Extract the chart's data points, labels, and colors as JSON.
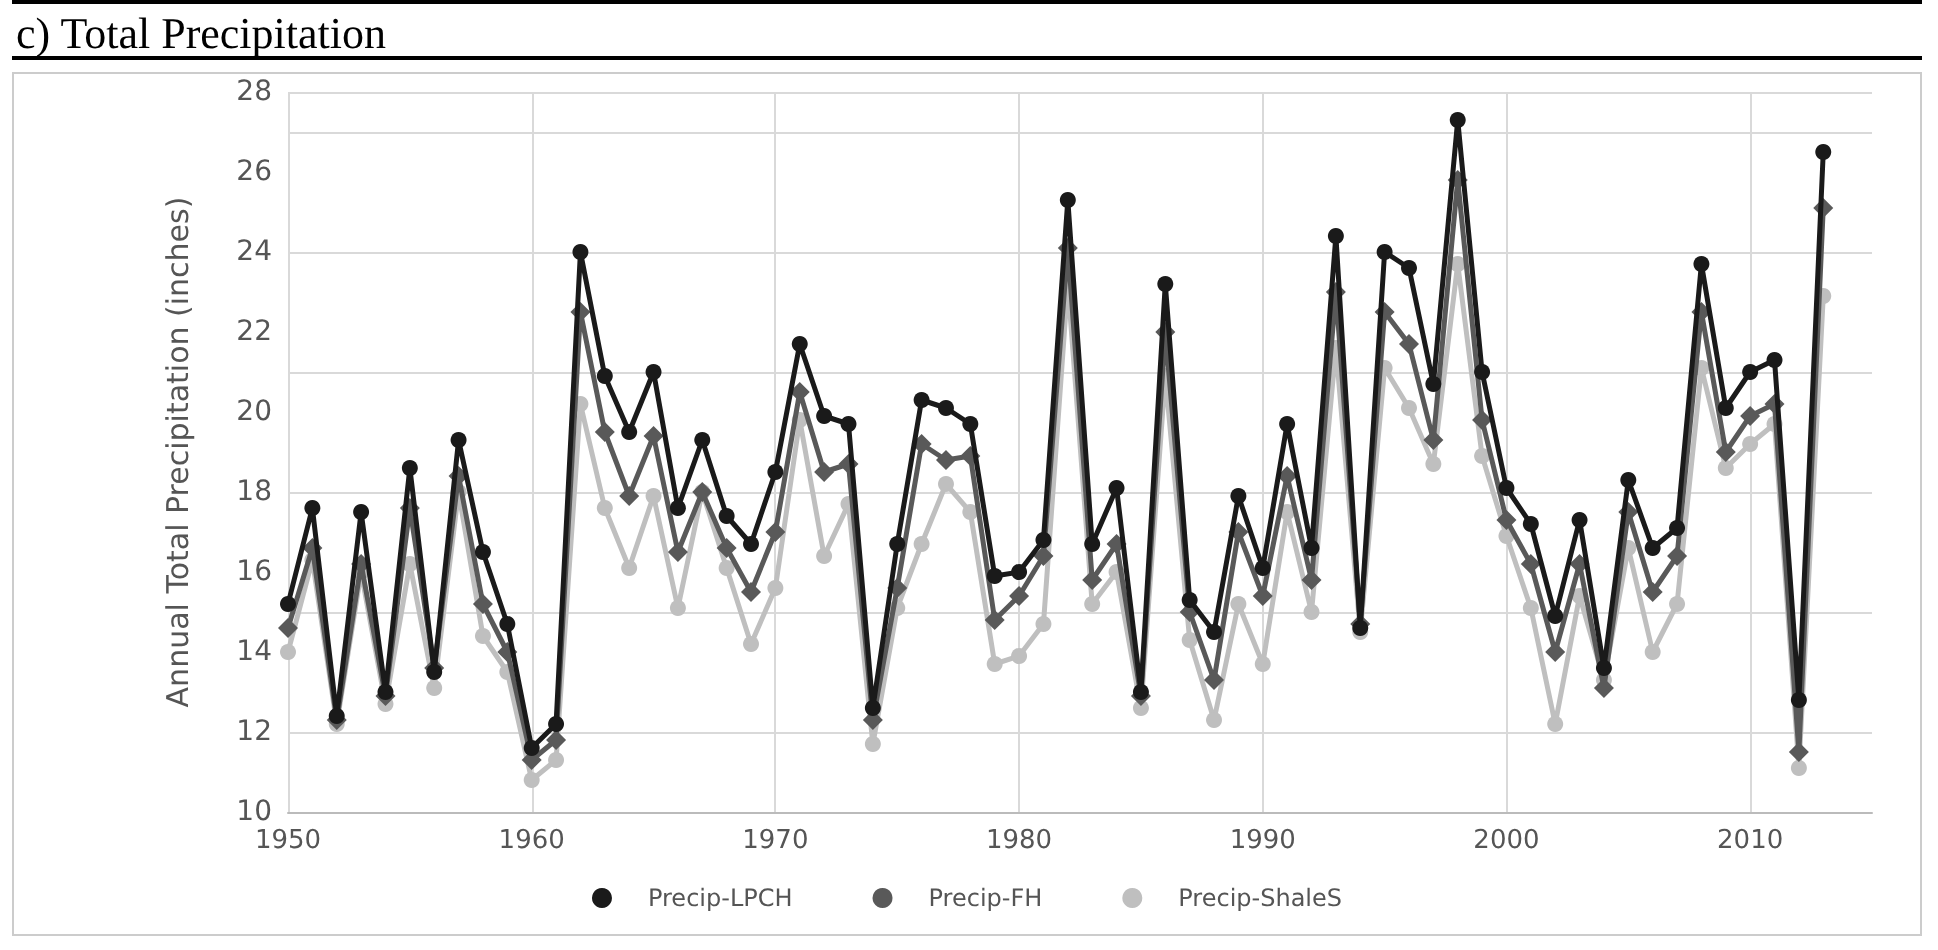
{
  "chart_data": {
    "type": "line",
    "title": "c) Total Precipitation",
    "ylabel": "Annual Total Precipitation (inches)",
    "x": [
      1950,
      1951,
      1952,
      1953,
      1954,
      1955,
      1956,
      1957,
      1958,
      1959,
      1960,
      1961,
      1962,
      1963,
      1964,
      1965,
      1966,
      1967,
      1968,
      1969,
      1970,
      1971,
      1972,
      1973,
      1974,
      1975,
      1976,
      1977,
      1978,
      1979,
      1980,
      1981,
      1982,
      1983,
      1984,
      1985,
      1986,
      1987,
      1988,
      1989,
      1990,
      1991,
      1992,
      1993,
      1994,
      1995,
      1996,
      1997,
      1998,
      1999,
      2000,
      2001,
      2002,
      2003,
      2004,
      2005,
      2006,
      2007,
      2008,
      2009,
      2010,
      2011,
      2012,
      2013
    ],
    "series": [
      {
        "name": "Precip-LPCH",
        "color": "#1a1a1a",
        "marker": "circle",
        "values": [
          15.2,
          17.6,
          12.4,
          17.5,
          13.0,
          18.6,
          13.5,
          19.3,
          16.5,
          14.7,
          11.6,
          12.2,
          24.0,
          20.9,
          19.5,
          21.0,
          17.6,
          19.3,
          17.4,
          16.7,
          18.5,
          21.7,
          19.9,
          19.7,
          12.6,
          16.7,
          20.3,
          20.1,
          19.7,
          15.9,
          16.0,
          16.8,
          25.3,
          16.7,
          18.1,
          13.0,
          23.2,
          15.3,
          14.5,
          17.9,
          16.1,
          19.7,
          16.6,
          24.4,
          14.6,
          24.0,
          23.6,
          20.7,
          27.3,
          21.0,
          18.1,
          17.2,
          14.9,
          17.3,
          13.6,
          18.3,
          16.6,
          17.1,
          23.7,
          20.1,
          21.0,
          21.3,
          12.8,
          26.5
        ]
      },
      {
        "name": "Precip-FH",
        "color": "#595959",
        "marker": "diamond",
        "values": [
          14.6,
          16.6,
          12.3,
          16.2,
          12.9,
          17.6,
          13.6,
          18.4,
          15.2,
          14.0,
          11.3,
          11.8,
          22.5,
          19.5,
          17.9,
          19.4,
          16.5,
          18.0,
          16.6,
          15.5,
          17.0,
          20.5,
          18.5,
          18.7,
          12.3,
          15.6,
          19.2,
          18.8,
          18.9,
          14.8,
          15.4,
          16.4,
          24.1,
          15.8,
          16.7,
          12.9,
          22.0,
          15.0,
          13.3,
          17.0,
          15.4,
          18.4,
          15.8,
          23.0,
          14.7,
          22.5,
          21.7,
          19.3,
          25.8,
          19.8,
          17.3,
          16.2,
          14.0,
          16.2,
          13.1,
          17.5,
          15.5,
          16.4,
          22.5,
          19.0,
          19.9,
          20.2,
          11.5,
          25.1
        ]
      },
      {
        "name": "Precip-ShaleS",
        "color": "#bfbfbf",
        "marker": "circle",
        "values": [
          14.0,
          16.3,
          12.2,
          16.0,
          12.7,
          16.2,
          13.1,
          18.0,
          14.4,
          13.5,
          10.8,
          11.3,
          20.2,
          17.6,
          16.1,
          17.9,
          15.1,
          18.0,
          16.1,
          14.2,
          15.6,
          19.8,
          16.4,
          17.7,
          11.7,
          15.1,
          16.7,
          18.2,
          17.5,
          13.7,
          13.9,
          14.7,
          23.2,
          15.2,
          16.0,
          12.6,
          20.9,
          14.3,
          12.3,
          15.2,
          13.7,
          17.5,
          15.0,
          21.6,
          14.5,
          21.1,
          20.1,
          18.7,
          23.7,
          18.9,
          16.9,
          15.1,
          12.2,
          15.4,
          13.3,
          16.6,
          14.0,
          15.2,
          21.1,
          18.6,
          19.2,
          19.7,
          11.1,
          22.9
        ]
      }
    ],
    "xlim": [
      1950,
      2015
    ],
    "xticks": [
      1950,
      1960,
      1970,
      1980,
      1990,
      2000,
      2010
    ],
    "ylim": [
      10,
      28
    ],
    "yticks": [
      10,
      12,
      14,
      16,
      18,
      20,
      22,
      24,
      26,
      28
    ],
    "grid": true,
    "legend": "bottom",
    "line_style": "solid"
  }
}
